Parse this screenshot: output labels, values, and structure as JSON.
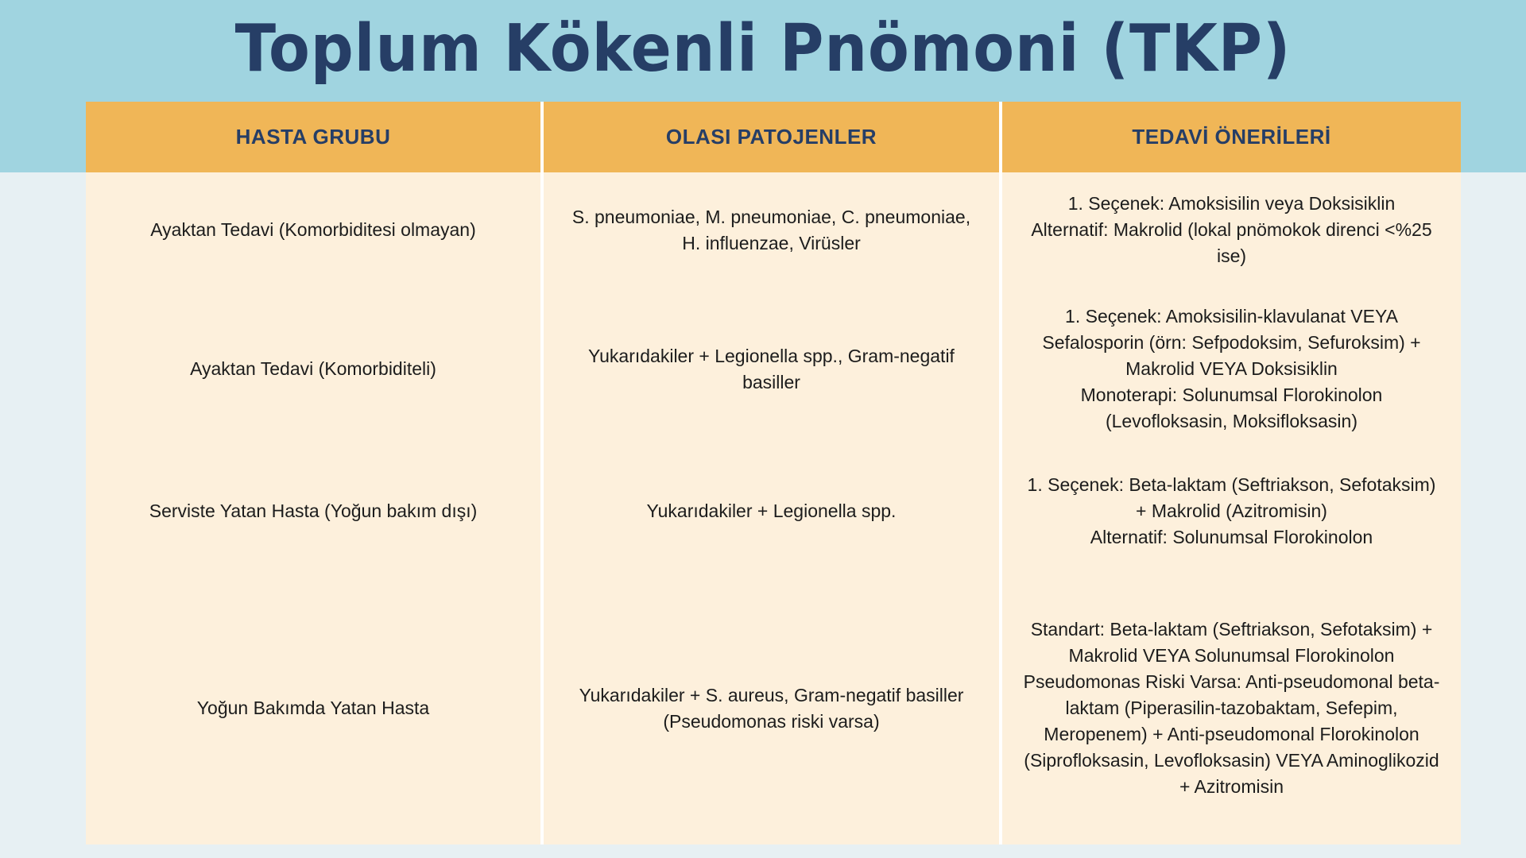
{
  "title": "Toplum Kökenli Pnömoni (TKP)",
  "colors": {
    "header_band": "#a0d4e0",
    "title": "#263e66",
    "table_header": "#f0b657",
    "table_body": "#fdf0dc"
  },
  "table": {
    "headers": [
      "HASTA GRUBU",
      "OLASI PATOJENLER",
      "TEDAVİ ÖNERİLERİ"
    ],
    "rows": [
      {
        "group": "Ayaktan Tedavi (Komorbiditesi olmayan)",
        "pathogens": "S. pneumoniae, M. pneumoniae, C. pneumoniae, H. influenzae, Virüsler",
        "treatment": [
          "1. Seçenek: Amoksisilin veya Doksisiklin",
          "Alternatif: Makrolid (lokal pnömokok direnci <%25 ise)"
        ]
      },
      {
        "group": "Ayaktan Tedavi (Komorbiditeli)",
        "pathogens": "Yukarıdakiler + Legionella spp., Gram-negatif basiller",
        "treatment": [
          "1. Seçenek: Amoksisilin-klavulanat VEYA Sefalosporin (örn: Sefpodoksim, Sefuroksim) + Makrolid VEYA Doksisiklin",
          "Monoterapi: Solunumsal Florokinolon (Levofloksasin, Moksifloksasin)"
        ]
      },
      {
        "group": "Serviste Yatan Hasta (Yoğun bakım dışı)",
        "pathogens": "Yukarıdakiler + Legionella spp.",
        "treatment": [
          "1. Seçenek: Beta-laktam (Seftriakson, Sefotaksim) + Makrolid (Azitromisin)",
          "Alternatif: Solunumsal Florokinolon"
        ]
      },
      {
        "group": "Yoğun Bakımda Yatan Hasta",
        "pathogens": "Yukarıdakiler + S. aureus, Gram-negatif basiller (Pseudomonas riski varsa)",
        "treatment": [
          "Standart: Beta-laktam (Seftriakson, Sefotaksim) + Makrolid VEYA Solunumsal Florokinolon",
          "Pseudomonas Riski Varsa: Anti-pseudomonal beta-laktam (Piperasilin-tazobaktam, Sefepim, Meropenem) + Anti-pseudomonal Florokinolon (Siprofloksasin, Levofloksasin) VEYA Aminoglikozid + Azitromisin"
        ]
      }
    ]
  }
}
